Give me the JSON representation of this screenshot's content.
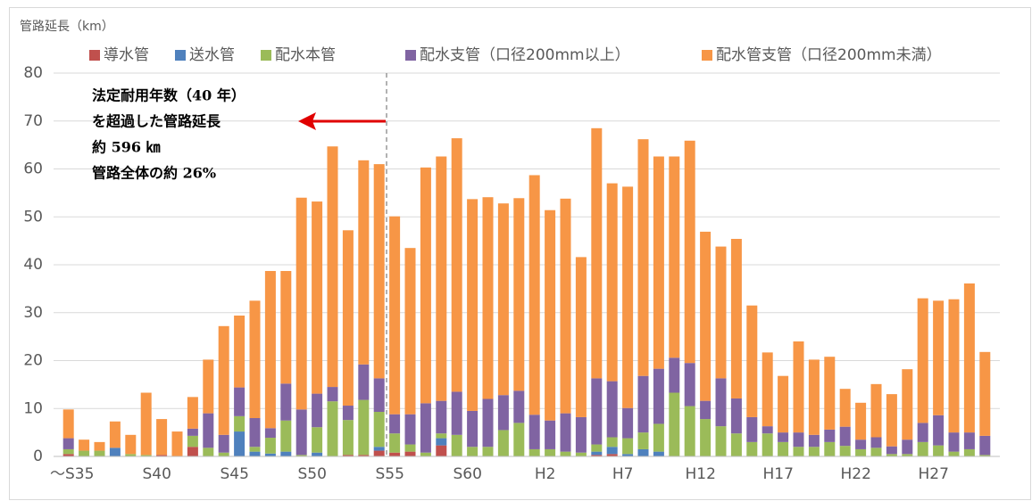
{
  "chart_data": {
    "type": "stacked_bar",
    "y_label": "管路延長（km）",
    "annotation": [
      "法定耐用年数（40 年）",
      "を超過した管路延長",
      "約 596 ㎞",
      "管路全体の約 26%"
    ],
    "categories": [
      "～S35",
      null,
      null,
      null,
      null,
      "S40",
      null,
      null,
      null,
      null,
      "S45",
      null,
      null,
      null,
      null,
      "S50",
      null,
      null,
      null,
      null,
      "S55",
      null,
      null,
      null,
      null,
      "S60",
      null,
      null,
      null,
      null,
      "H2",
      null,
      null,
      null,
      null,
      "H7",
      null,
      null,
      null,
      null,
      "H12",
      null,
      null,
      null,
      null,
      "H17",
      null,
      null,
      null,
      null,
      "H22",
      null,
      null,
      null,
      null,
      "H27",
      null,
      null,
      null,
      null
    ],
    "ylim": [
      0,
      80
    ],
    "yticks": [
      0,
      10,
      20,
      30,
      40,
      50,
      60,
      70,
      80
    ],
    "grid": true,
    "series": [
      {
        "name": "導水管",
        "color": "#c0504d",
        "values": [
          0.5,
          0,
          0,
          0,
          0,
          0,
          0.3,
          0,
          2.0,
          0,
          0,
          0,
          0,
          0,
          0,
          0,
          0,
          0,
          0.3,
          0.3,
          1.2,
          0.8,
          1.0,
          0,
          2.3,
          0,
          0,
          0,
          0,
          0,
          0,
          0,
          0,
          0,
          0.3,
          0.5,
          0,
          0,
          0,
          0,
          0,
          0,
          0,
          0,
          0,
          0,
          0,
          0,
          0,
          0,
          0,
          0,
          0,
          0,
          0,
          0,
          0,
          0,
          0,
          0
        ]
      },
      {
        "name": "送水管",
        "color": "#4f81bd",
        "values": [
          0,
          0,
          0,
          1.8,
          0,
          0,
          0,
          0,
          0,
          0,
          0,
          5.2,
          1.0,
          0.6,
          1.0,
          0,
          0.8,
          0,
          0,
          0,
          0.8,
          0,
          0,
          0,
          1.5,
          0,
          0,
          0,
          0,
          0,
          0,
          0,
          0,
          0,
          0.7,
          1.5,
          0.5,
          1.5,
          1.0,
          0,
          0,
          0,
          0,
          0,
          0,
          0,
          0,
          0,
          0,
          0,
          0,
          0,
          0,
          0,
          0,
          0,
          0,
          0,
          0,
          0
        ]
      },
      {
        "name": "配水本管",
        "color": "#9bbb59",
        "values": [
          1,
          1.2,
          1.2,
          0,
          0.5,
          0.3,
          0,
          0,
          2.3,
          1.8,
          0.8,
          3.2,
          1.0,
          3.3,
          6.5,
          0.3,
          5.3,
          11.5,
          7.3,
          11.5,
          7.3,
          4.0,
          1.5,
          0.8,
          1.0,
          4.5,
          2.0,
          2.0,
          5.5,
          7.0,
          1.5,
          1.5,
          1.0,
          0.8,
          1.5,
          2.0,
          3.3,
          3.5,
          5.8,
          13.3,
          10.5,
          7.8,
          6.3,
          4.8,
          3.0,
          4.8,
          3.0,
          2.0,
          2.0,
          3.0,
          2.2,
          1.5,
          1.8,
          0.5,
          0.5,
          3.0,
          2.3,
          1.0,
          1.5,
          0.3
        ]
      },
      {
        "name": "配水支管（口径200mm以上）",
        "color": "#8064a2",
        "values": [
          2.3,
          0,
          0,
          0,
          0,
          0,
          0,
          0,
          1.5,
          7.2,
          3.7,
          6.0,
          6.0,
          2.0,
          7.7,
          9.5,
          7.0,
          3.0,
          3.0,
          7.4,
          7.0,
          4.0,
          6.3,
          10.3,
          6.8,
          9.0,
          7.5,
          10.0,
          7.3,
          6.7,
          7.2,
          6.0,
          8.0,
          7.4,
          13.8,
          11.7,
          6.3,
          11.8,
          11.5,
          7.3,
          9.0,
          3.8,
          10.0,
          7.3,
          5.2,
          1.5,
          2.0,
          3.0,
          2.5,
          2.6,
          4.0,
          2.0,
          2.2,
          1.6,
          3.0,
          4.0,
          6.3,
          4.0,
          3.5,
          4.0
        ]
      },
      {
        "name": "配水管支管（口径200mm未満）",
        "color": "#f79646",
        "values": [
          6.0,
          2.3,
          1.8,
          5.5,
          4.0,
          13.0,
          7.5,
          5.2,
          6.6,
          11.2,
          22.7,
          15.0,
          24.5,
          32.8,
          23.5,
          44.2,
          40.1,
          50.2,
          36.6,
          42.6,
          44.7,
          41.3,
          34.7,
          49.2,
          51.0,
          52.9,
          44.2,
          42.1,
          40.0,
          40.2,
          50.0,
          43.9,
          44.8,
          33.4,
          52.2,
          41.3,
          46.2,
          49.4,
          44.3,
          42.0,
          46.4,
          35.3,
          27.5,
          33.3,
          23.3,
          15.4,
          11.8,
          19.0,
          15.7,
          15.2,
          7.9,
          7.7,
          11.1,
          10.9,
          14.7,
          26.0,
          23.9,
          27.8,
          31.1,
          17.5
        ]
      }
    ]
  }
}
